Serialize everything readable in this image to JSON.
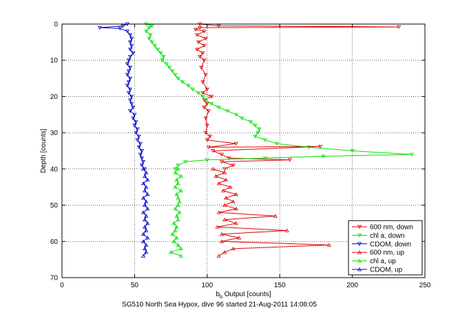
{
  "chart_data": {
    "type": "line",
    "title": "",
    "xlabel_main": "b",
    "xlabel_sub": "b",
    "xlabel_rest": " Output [counts]",
    "ylabel": "Depth [counts]",
    "caption": "SG510 North Sea Hypox, dive 96 started 21-Aug-2011 14:08:05",
    "xlim": [
      0,
      250
    ],
    "ylim": [
      0,
      70
    ],
    "y_reversed": true,
    "grid": true,
    "legend_position": "bottom-right",
    "xticks": [
      0,
      50,
      100,
      150,
      200,
      250
    ],
    "yticks": [
      0,
      10,
      20,
      30,
      40,
      50,
      60,
      70
    ],
    "colors": {
      "red": "#e00000",
      "green": "#00e000",
      "blue": "#0000c8"
    },
    "series": [
      {
        "name": "600 nm, down",
        "color": "#e00000",
        "marker": "down",
        "points": [
          [
            95,
            0
          ],
          [
            108,
            0.5
          ],
          [
            232,
            0.8
          ],
          [
            95,
            1
          ],
          [
            92,
            1.5
          ],
          [
            98,
            2
          ],
          [
            93,
            3
          ],
          [
            99,
            4
          ],
          [
            94,
            5
          ],
          [
            98,
            6
          ],
          [
            93,
            7
          ],
          [
            97,
            8
          ],
          [
            95,
            9
          ],
          [
            98,
            10
          ],
          [
            96,
            12
          ],
          [
            99,
            14
          ],
          [
            97,
            16
          ],
          [
            100,
            18
          ],
          [
            97,
            19
          ],
          [
            103,
            20
          ],
          [
            98,
            21
          ],
          [
            100,
            22
          ],
          [
            98,
            23
          ],
          [
            101,
            24
          ],
          [
            99,
            26
          ],
          [
            100,
            28
          ],
          [
            99,
            30
          ],
          [
            102,
            31
          ],
          [
            100,
            32
          ],
          [
            120,
            33
          ],
          [
            101,
            34
          ],
          [
            178,
            33.8
          ],
          [
            104,
            35
          ],
          [
            110,
            36
          ],
          [
            115,
            37
          ],
          [
            157,
            37.5
          ],
          [
            110,
            38
          ],
          [
            118,
            39
          ],
          [
            112,
            40
          ]
        ]
      },
      {
        "name": "chl a, down",
        "color": "#00e000",
        "marker": "down",
        "points": [
          [
            58,
            0
          ],
          [
            62,
            0.5
          ],
          [
            60,
            1
          ],
          [
            58,
            2
          ],
          [
            61,
            3
          ],
          [
            60,
            4
          ],
          [
            62,
            5
          ],
          [
            64,
            6
          ],
          [
            66,
            7
          ],
          [
            68,
            8
          ],
          [
            70,
            9
          ],
          [
            69,
            10
          ],
          [
            72,
            11
          ],
          [
            74,
            12
          ],
          [
            76,
            13
          ],
          [
            78,
            14
          ],
          [
            80,
            15
          ],
          [
            83,
            16
          ],
          [
            87,
            17
          ],
          [
            90,
            18
          ],
          [
            94,
            19
          ],
          [
            97,
            20
          ],
          [
            99,
            21
          ],
          [
            103,
            22
          ],
          [
            108,
            23
          ],
          [
            114,
            24
          ],
          [
            120,
            25
          ],
          [
            124,
            26
          ],
          [
            130,
            27
          ],
          [
            133,
            28
          ],
          [
            136,
            29
          ],
          [
            135,
            30
          ],
          [
            133,
            31
          ],
          [
            140,
            32
          ],
          [
            148,
            33
          ],
          [
            170,
            34
          ],
          [
            200,
            35
          ],
          [
            241,
            36
          ],
          [
            180,
            36.5
          ],
          [
            140,
            37
          ],
          [
            100,
            37.5
          ],
          [
            85,
            38
          ],
          [
            80,
            39
          ],
          [
            78,
            40
          ]
        ]
      },
      {
        "name": "CDOM, down",
        "color": "#0000c8",
        "marker": "down",
        "points": [
          [
            45,
            0
          ],
          [
            42,
            0.5
          ],
          [
            26,
            1
          ],
          [
            40,
            1.2
          ],
          [
            45,
            2
          ],
          [
            47,
            3
          ],
          [
            48,
            4
          ],
          [
            47,
            5
          ],
          [
            48,
            6
          ],
          [
            47,
            7
          ],
          [
            49,
            8
          ],
          [
            47,
            9
          ],
          [
            46,
            10
          ],
          [
            45,
            11
          ],
          [
            47,
            12
          ],
          [
            46,
            13
          ],
          [
            45,
            14
          ],
          [
            47,
            15
          ],
          [
            46,
            16
          ],
          [
            45,
            17
          ],
          [
            47,
            18
          ],
          [
            46,
            19
          ],
          [
            48,
            20
          ],
          [
            47,
            21
          ],
          [
            48,
            22
          ],
          [
            49,
            23
          ],
          [
            47,
            24
          ],
          [
            50,
            25
          ],
          [
            49,
            26
          ],
          [
            51,
            27
          ],
          [
            50,
            28
          ],
          [
            52,
            29
          ],
          [
            51,
            30
          ],
          [
            53,
            31
          ],
          [
            52,
            32
          ],
          [
            54,
            33
          ],
          [
            53,
            34
          ],
          [
            55,
            35
          ],
          [
            54,
            36
          ],
          [
            55,
            37
          ],
          [
            56,
            38
          ],
          [
            55,
            39
          ],
          [
            57,
            40
          ]
        ]
      },
      {
        "name": "600 nm, up",
        "color": "#e00000",
        "marker": "up",
        "points": [
          [
            104,
            40
          ],
          [
            112,
            41
          ],
          [
            106,
            42
          ],
          [
            113,
            43
          ],
          [
            108,
            44
          ],
          [
            116,
            45
          ],
          [
            111,
            46
          ],
          [
            120,
            47
          ],
          [
            113,
            48
          ],
          [
            118,
            49
          ],
          [
            112,
            50
          ],
          [
            120,
            51
          ],
          [
            108,
            52
          ],
          [
            147,
            53
          ],
          [
            112,
            54
          ],
          [
            120,
            55
          ],
          [
            107,
            56
          ],
          [
            155,
            57
          ],
          [
            110,
            58
          ],
          [
            122,
            59
          ],
          [
            110,
            60
          ],
          [
            184,
            61
          ],
          [
            118,
            62
          ],
          [
            112,
            63
          ],
          [
            108,
            64
          ]
        ]
      },
      {
        "name": "chl a, up",
        "color": "#00e000",
        "marker": "up",
        "points": [
          [
            80,
            40
          ],
          [
            78,
            41
          ],
          [
            82,
            42
          ],
          [
            79,
            43
          ],
          [
            80,
            44
          ],
          [
            78,
            45
          ],
          [
            82,
            46
          ],
          [
            79,
            47
          ],
          [
            80,
            48
          ],
          [
            81,
            49
          ],
          [
            80,
            50
          ],
          [
            78,
            51
          ],
          [
            81,
            52
          ],
          [
            79,
            53
          ],
          [
            80,
            54
          ],
          [
            77,
            55
          ],
          [
            79,
            56
          ],
          [
            78,
            57
          ],
          [
            76,
            58
          ],
          [
            79,
            59
          ],
          [
            77,
            60
          ],
          [
            80,
            61
          ],
          [
            82,
            62
          ],
          [
            75,
            63
          ],
          [
            82,
            64
          ]
        ]
      },
      {
        "name": "CDOM, up",
        "color": "#0000c8",
        "marker": "up",
        "points": [
          [
            56,
            40
          ],
          [
            58,
            41
          ],
          [
            57,
            42
          ],
          [
            59,
            43
          ],
          [
            56,
            44
          ],
          [
            58,
            45
          ],
          [
            57,
            46
          ],
          [
            59,
            47
          ],
          [
            56,
            48
          ],
          [
            58,
            49
          ],
          [
            57,
            50
          ],
          [
            59,
            51
          ],
          [
            56,
            52
          ],
          [
            58,
            53
          ],
          [
            57,
            54
          ],
          [
            59,
            55
          ],
          [
            57,
            56
          ],
          [
            58,
            57
          ],
          [
            56,
            58
          ],
          [
            59,
            59
          ],
          [
            56,
            60
          ],
          [
            58,
            61
          ],
          [
            57,
            62
          ],
          [
            58,
            63
          ],
          [
            56,
            64
          ]
        ]
      }
    ]
  }
}
